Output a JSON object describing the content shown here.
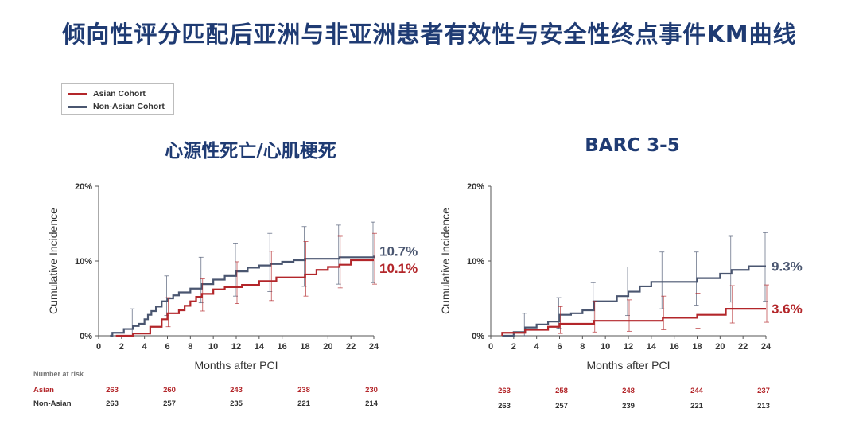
{
  "page": {
    "title": "倾向性评分匹配后亚洲与非亚洲患者有效性与安全性终点事件KM曲线"
  },
  "legend": {
    "items": [
      {
        "label": "Asian Cohort",
        "color": "#b3262a"
      },
      {
        "label": "Non-Asian Cohort",
        "color": "#4a5670"
      }
    ]
  },
  "colors": {
    "asian": "#b3262a",
    "non_asian": "#4a5670"
  },
  "risk_table": {
    "header": "Number at risk",
    "row_labels": [
      "Asian",
      "Non-Asian"
    ]
  },
  "chart_data": [
    {
      "type": "line",
      "step": true,
      "title": "心源性死亡/心肌梗死",
      "xlabel": "Months after PCI",
      "ylabel": "Cumulative Incidence",
      "xlim": [
        0,
        24
      ],
      "ylim": [
        0,
        20
      ],
      "xticks": [
        "0",
        "2",
        "4",
        "6",
        "8",
        "10",
        "12",
        "14",
        "16",
        "18",
        "20",
        "22",
        "24"
      ],
      "yticks": [
        "0%",
        "10%",
        "20%"
      ],
      "series": [
        {
          "name": "Asian Cohort",
          "color": "#b3262a",
          "end_label": "10.1%",
          "x": [
            0,
            3,
            4.5,
            5.5,
            6,
            7,
            7.5,
            8,
            8.5,
            9,
            10,
            11,
            12.5,
            14,
            15.5,
            18,
            19,
            20,
            21,
            22,
            24
          ],
          "y": [
            0,
            0.3,
            1.2,
            2.2,
            3.0,
            3.4,
            4.0,
            4.6,
            5.2,
            5.6,
            6.2,
            6.5,
            6.8,
            7.3,
            7.8,
            8.2,
            8.8,
            9.2,
            9.5,
            10.1,
            10.1
          ],
          "ci_x": [
            6,
            9,
            12,
            15,
            18,
            21,
            24
          ],
          "ci_low": [
            1.2,
            3.3,
            4.3,
            4.7,
            5.3,
            6.4,
            6.9
          ],
          "ci_high": [
            5.1,
            7.6,
            9.9,
            11.3,
            12.6,
            13.3,
            13.7
          ]
        },
        {
          "name": "Non-Asian Cohort",
          "color": "#4a5670",
          "end_label": "10.7%",
          "x": [
            0,
            1.2,
            2.2,
            3,
            3.5,
            4,
            4.3,
            4.6,
            5,
            5.5,
            6,
            6.5,
            7,
            8,
            9,
            10,
            11,
            12,
            13,
            14,
            15,
            16,
            17,
            18,
            21,
            24
          ],
          "y": [
            0,
            0.4,
            0.9,
            1.3,
            1.6,
            2.2,
            2.8,
            3.3,
            3.9,
            4.6,
            5.0,
            5.4,
            5.8,
            6.3,
            6.9,
            7.5,
            8.0,
            8.6,
            9.1,
            9.4,
            9.6,
            9.9,
            10.1,
            10.3,
            10.5,
            10.7
          ],
          "ci_x": [
            3,
            6,
            9,
            12,
            15,
            18,
            21,
            24
          ],
          "ci_low": [
            0,
            2.7,
            4.4,
            5.3,
            5.9,
            6.6,
            6.9,
            7.1
          ],
          "ci_high": [
            3.6,
            8.0,
            10.5,
            12.3,
            13.7,
            14.6,
            14.8,
            15.2
          ]
        }
      ],
      "number_at_risk": {
        "Asian": [
          "263",
          "260",
          "243",
          "238",
          "230"
        ],
        "Non-Asian": [
          "263",
          "257",
          "235",
          "221",
          "214"
        ]
      }
    },
    {
      "type": "line",
      "step": true,
      "title": "BARC 3-5",
      "xlabel": "Months after PCI",
      "ylabel": "Cumulative Incidence",
      "xlim": [
        0,
        24
      ],
      "ylim": [
        0,
        20
      ],
      "xticks": [
        "0",
        "2",
        "4",
        "6",
        "8",
        "10",
        "12",
        "14",
        "16",
        "18",
        "20",
        "22",
        "24"
      ],
      "yticks": [
        "0%",
        "10%",
        "20%"
      ],
      "series": [
        {
          "name": "Asian Cohort",
          "color": "#b3262a",
          "end_label": "3.6%",
          "x": [
            0,
            1,
            3,
            5,
            6,
            9,
            15,
            18,
            20.5,
            24
          ],
          "y": [
            0,
            0.4,
            0.8,
            1.2,
            1.6,
            2.0,
            2.4,
            2.8,
            3.6,
            3.6
          ],
          "ci_x": [
            6,
            9,
            12,
            15,
            18,
            21,
            24
          ],
          "ci_low": [
            0.3,
            0.5,
            0.6,
            0.8,
            1.0,
            1.7,
            1.8
          ],
          "ci_high": [
            3.9,
            4.6,
            4.8,
            5.3,
            5.7,
            6.7,
            6.8
          ]
        },
        {
          "name": "Non-Asian Cohort",
          "color": "#4a5670",
          "end_label": "9.3%",
          "x": [
            0,
            2,
            3,
            4,
            5,
            6,
            7,
            8,
            9,
            11,
            12,
            13,
            14,
            18,
            20,
            21,
            22.5,
            24
          ],
          "y": [
            0,
            0.5,
            1.1,
            1.5,
            1.9,
            2.8,
            3.0,
            3.4,
            4.6,
            5.3,
            5.9,
            6.6,
            7.2,
            7.7,
            8.3,
            8.8,
            9.3,
            9.3
          ],
          "ci_x": [
            3,
            6,
            9,
            12,
            15,
            18,
            21,
            24
          ],
          "ci_low": [
            0,
            1.0,
            2.0,
            2.7,
            3.6,
            4.1,
            4.5,
            4.6
          ],
          "ci_high": [
            3.0,
            5.1,
            7.1,
            9.2,
            11.2,
            11.2,
            13.3,
            13.8
          ]
        }
      ],
      "number_at_risk": {
        "Asian": [
          "263",
          "258",
          "248",
          "244",
          "237"
        ],
        "Non-Asian": [
          "263",
          "257",
          "239",
          "221",
          "213"
        ]
      }
    }
  ]
}
